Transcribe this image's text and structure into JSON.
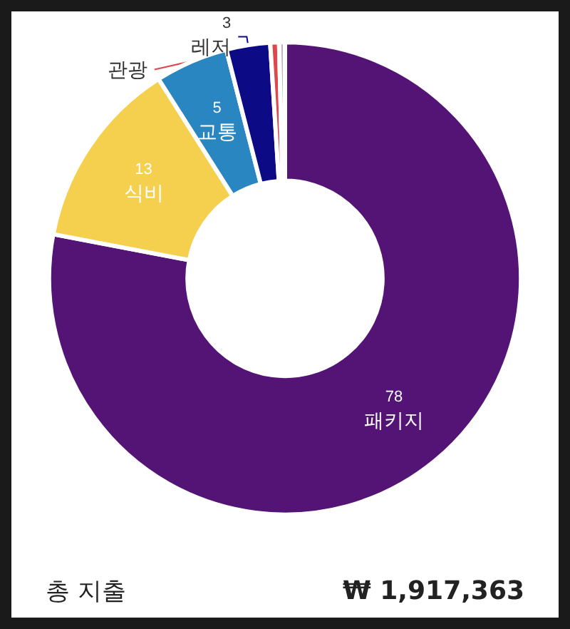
{
  "chart_data": {
    "type": "donut",
    "categories": [
      "패키지",
      "식비",
      "교통",
      "레저",
      "관광",
      null
    ],
    "values": [
      78,
      13,
      5,
      3,
      0.6,
      0.4
    ],
    "value_labels": [
      "78",
      "13",
      "5",
      "3",
      null,
      null
    ],
    "colors": [
      "#541475",
      "#f5d04f",
      "#2a86c0",
      "#0c0b85",
      "#e0474c",
      "#b8b8c0"
    ],
    "legend": false,
    "annotations": [
      "총 지출",
      "₩ 1,917,363"
    ]
  }
}
